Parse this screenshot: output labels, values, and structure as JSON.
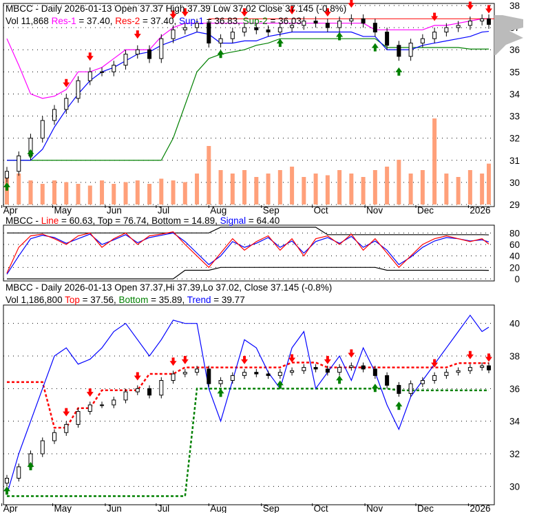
{
  "colors": {
    "res1": "#ff00ff",
    "res2": "#ff0000",
    "sup1": "#0000ff",
    "sup2": "#008000",
    "volume": "#ffa07a",
    "line": "#ff0000",
    "signal": "#0000ff",
    "top": "#ff0000",
    "bottom": "#008000",
    "trend": "#0000ff",
    "buy": "#008000",
    "sell": "#ff0000"
  },
  "panel1": {
    "ticker": "MBCC - Daily 2026-01-13 Open 37.37  High 37.39  Low 37.02  Close 37.145 (-0.8%)",
    "vol": "Vol 11,868",
    "res1": "Res-1",
    "res1v": " = 37.40, ",
    "res2": "Res-2",
    "res2v": " = 37.40, ",
    "sup1": "Sup-1",
    "sup1v": " = 36.83, ",
    "sup2": "Sup-2",
    "sup2v": " = 36.03"
  },
  "panel2": {
    "prefix": "MBCC - ",
    "line": "Line",
    "rest1": " = 60.63, Top = 76.74, Bottom = 14.89, ",
    "signal": "Signal",
    "signalv": " = 64.40"
  },
  "panel3": {
    "ticker": "MBCC - Daily 2026-01-13 Open 37.37,Hi 37.39,Lo 37.02, Close 37.145 (-0.8%)",
    "vol": "Vol 1,186,800 ",
    "top": "Top",
    "topv": " = 37.56, ",
    "bottom": "Bottom",
    "bottomv": " = 35.89, ",
    "trend": "Trend",
    "trendv": " = 39.77"
  },
  "chart_data": [
    {
      "type": "candlestick",
      "title": "MBCC - Daily",
      "ylim": [
        29,
        38
      ],
      "yticks": [
        "38",
        "37",
        "36",
        "35",
        "34",
        "33",
        "32",
        "31",
        "30",
        "29"
      ],
      "xticks": [
        "Apr",
        "May",
        "Jun",
        "Jul",
        "Aug",
        "Sep",
        "Oct",
        "Nov",
        "Dec",
        "2026"
      ],
      "x": [
        "2025-04-04",
        "2025-04-11",
        "2025-04-18",
        "2025-04-25",
        "2025-05-02",
        "2025-05-09",
        "2025-05-16",
        "2025-05-23",
        "2025-05-30",
        "2025-06-06",
        "2025-06-13",
        "2025-06-20",
        "2025-06-27",
        "2025-07-04",
        "2025-07-11",
        "2025-07-18",
        "2025-07-25",
        "2025-08-01",
        "2025-08-08",
        "2025-08-15",
        "2025-08-22",
        "2025-08-29",
        "2025-09-05",
        "2025-09-12",
        "2025-09-19",
        "2025-09-26",
        "2025-10-03",
        "2025-10-10",
        "2025-10-17",
        "2025-10-24",
        "2025-10-31",
        "2025-11-07",
        "2025-11-14",
        "2025-11-21",
        "2025-11-28",
        "2025-12-05",
        "2025-12-12",
        "2025-12-19",
        "2025-12-26",
        "2026-01-02",
        "2026-01-09",
        "2026-01-13"
      ],
      "close": [
        30.5,
        31.2,
        32.0,
        32.8,
        33.3,
        33.8,
        34.6,
        35.0,
        35.0,
        35.3,
        35.8,
        36.0,
        35.6,
        36.5,
        36.9,
        37.0,
        37.2,
        36.3,
        36.5,
        36.8,
        37.0,
        36.9,
        36.8,
        37.0,
        37.1,
        37.3,
        37.2,
        37.0,
        37.3,
        37.4,
        37.2,
        36.8,
        36.2,
        35.7,
        36.3,
        36.5,
        36.8,
        37.0,
        37.1,
        37.3,
        37.4,
        37.145
      ],
      "volume": [
        800000,
        900000,
        700000,
        600000,
        700000,
        650000,
        600000,
        550000,
        700000,
        600000,
        650000,
        700000,
        600000,
        750000,
        700000,
        650000,
        900000,
        1700000,
        1000000,
        900000,
        1000000,
        800000,
        900000,
        1000000,
        1100000,
        800000,
        900000,
        850000,
        1000000,
        900000,
        800000,
        1000000,
        1100000,
        1300000,
        900000,
        1000000,
        2500000,
        900000,
        800000,
        1000000,
        900000,
        1186800
      ],
      "res1": [
        36.5,
        35.3,
        34.0,
        33.8,
        33.9,
        34.2,
        35.0,
        35.0,
        35.2,
        35.6,
        36.0,
        36.0,
        36.0,
        36.6,
        37.0,
        37.2,
        37.2,
        37.2,
        37.2,
        37.2,
        37.2,
        37.2,
        37.2,
        37.2,
        37.2,
        37.2,
        37.2,
        37.2,
        37.2,
        37.2,
        37.2,
        36.9,
        36.9,
        36.9,
        36.9,
        36.9,
        37.1,
        37.1,
        37.2,
        37.3,
        37.4,
        37.4
      ],
      "sup1": [
        31.0,
        31.0,
        31.0,
        31.5,
        32.5,
        33.3,
        34.0,
        34.6,
        35.0,
        35.2,
        35.5,
        35.8,
        35.9,
        36.2,
        36.4,
        36.6,
        36.8,
        36.7,
        36.3,
        36.3,
        36.4,
        36.4,
        36.6,
        36.7,
        36.8,
        36.8,
        36.8,
        36.8,
        36.8,
        36.8,
        36.6,
        36.6,
        36.0,
        36.0,
        36.0,
        36.2,
        36.3,
        36.4,
        36.5,
        36.6,
        36.8,
        36.83
      ],
      "sup2": [
        31.0,
        31.0,
        31.0,
        31.0,
        31.0,
        31.0,
        31.0,
        31.0,
        31.0,
        31.0,
        31.0,
        31.0,
        31.0,
        31.0,
        32.0,
        33.5,
        35.0,
        35.6,
        35.8,
        35.9,
        36.0,
        36.2,
        36.3,
        36.5,
        36.5,
        36.5,
        36.5,
        36.5,
        36.5,
        36.5,
        36.5,
        36.5,
        36.1,
        36.1,
        36.1,
        36.1,
        36.1,
        36.1,
        36.1,
        36.03,
        36.03,
        36.03
      ],
      "sell": [
        "2025-05-09",
        "2025-05-23",
        "2025-06-20",
        "2025-07-11",
        "2025-07-18",
        "2025-08-22",
        "2025-09-19",
        "2025-10-10",
        "2025-10-24",
        "2025-12-12",
        "2026-01-02",
        "2026-01-13"
      ],
      "buy": [
        "2025-04-04",
        "2025-04-18",
        "2025-08-08",
        "2025-09-12",
        "2025-10-17",
        "2025-11-07",
        "2025-11-21"
      ]
    },
    {
      "type": "line",
      "ylim": [
        0,
        90
      ],
      "yticks": [
        "80",
        "60",
        "40",
        "20",
        "0"
      ],
      "line": [
        10,
        55,
        75,
        78,
        70,
        60,
        75,
        80,
        55,
        70,
        80,
        60,
        75,
        78,
        82,
        60,
        40,
        20,
        45,
        70,
        50,
        65,
        75,
        50,
        70,
        40,
        70,
        75,
        60,
        78,
        50,
        70,
        45,
        20,
        40,
        60,
        70,
        75,
        70,
        65,
        70,
        60.63
      ],
      "signal": [
        8,
        40,
        70,
        76,
        72,
        62,
        70,
        78,
        60,
        68,
        77,
        63,
        72,
        76,
        80,
        65,
        45,
        25,
        40,
        65,
        55,
        62,
        72,
        55,
        66,
        45,
        65,
        72,
        62,
        74,
        55,
        66,
        50,
        25,
        38,
        55,
        66,
        72,
        70,
        66,
        68,
        64.4
      ],
      "top": [
        80,
        80,
        80,
        80,
        80,
        80,
        80,
        80,
        80,
        80,
        80,
        80,
        80,
        80,
        80,
        80,
        80,
        80,
        90,
        90,
        90,
        90,
        90,
        90,
        90,
        90,
        90,
        77,
        77,
        77,
        77,
        77,
        77,
        77,
        77,
        77,
        77,
        77,
        77,
        77,
        77,
        76.74
      ],
      "bottom": [
        0,
        0,
        0,
        0,
        0,
        0,
        0,
        0,
        0,
        0,
        0,
        0,
        0,
        0,
        0,
        15,
        15,
        15,
        20,
        20,
        20,
        20,
        20,
        20,
        20,
        20,
        20,
        20,
        20,
        20,
        20,
        20,
        15,
        15,
        15,
        15,
        15,
        15,
        15,
        15,
        15,
        14.89
      ]
    },
    {
      "type": "line",
      "ylim": [
        29,
        41
      ],
      "yticks": [
        "40",
        "38",
        "36",
        "34",
        "32",
        "30"
      ],
      "trend": [
        29.5,
        32,
        34,
        36,
        38,
        38.5,
        37.5,
        37.8,
        38.5,
        39.5,
        40,
        39,
        38,
        39,
        40.2,
        40,
        40,
        36,
        34,
        36.5,
        39,
        38.5,
        37,
        36,
        38.5,
        39.5,
        36,
        37,
        38,
        36.5,
        38.5,
        37,
        35,
        33.5,
        35.5,
        36.5,
        37.5,
        38.5,
        39.5,
        40.5,
        39.5,
        39.77
      ],
      "top": [
        36.4,
        36.4,
        36.4,
        36.4,
        33.6,
        33.6,
        34.8,
        34.8,
        35.9,
        35.9,
        35.9,
        35.9,
        36.9,
        36.9,
        36.9,
        37.3,
        37.3,
        37.3,
        37.3,
        37.3,
        37.3,
        37.3,
        37.3,
        37.3,
        37.6,
        37.6,
        37.6,
        37.3,
        37.3,
        37.3,
        37.3,
        37.3,
        37.3,
        37.3,
        37.3,
        37.3,
        37.3,
        37.3,
        37.56,
        37.56,
        37.56,
        37.56
      ],
      "bottom": [
        29.4,
        29.4,
        29.4,
        29.4,
        29.4,
        29.4,
        29.4,
        29.4,
        29.4,
        29.4,
        29.4,
        29.4,
        29.4,
        29.4,
        29.4,
        29.4,
        36,
        36,
        36,
        36,
        36,
        36,
        36,
        36,
        36,
        36,
        36,
        36,
        36,
        36,
        36,
        36,
        36,
        35.89,
        35.89,
        35.89,
        35.89,
        35.89,
        35.89,
        35.89,
        35.89,
        35.89
      ]
    }
  ]
}
